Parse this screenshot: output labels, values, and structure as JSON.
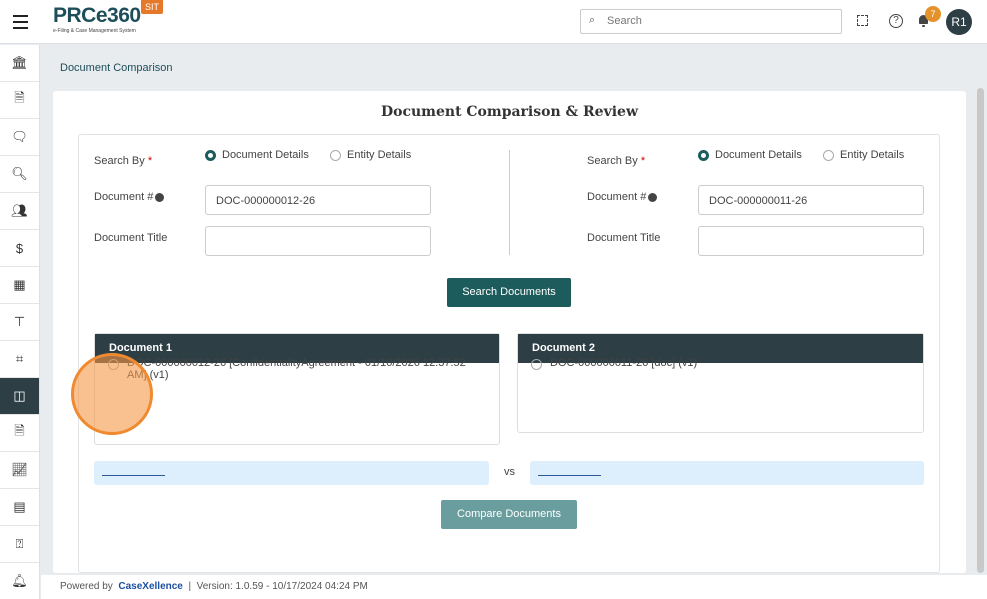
{
  "header": {
    "logo_text": "PRCe360",
    "logo_subtitle": "e-Filing & Case Management System",
    "env_badge": "SIT",
    "search_placeholder": "Search",
    "notification_count": "7",
    "avatar": "R1"
  },
  "sidebar": {
    "items": [
      "bank-icon",
      "document-icon",
      "chat-icon",
      "document-search-icon",
      "users-icon",
      "dollar-document-icon",
      "building-icon",
      "template-icon",
      "scan-icon",
      "compare-icon",
      "file-icon",
      "chart-icon",
      "calendar-icon",
      "help-icon",
      "bell-icon"
    ],
    "active_index": 9
  },
  "breadcrumb": "Document Comparison",
  "page": {
    "title": "Document Comparison & Review",
    "left": {
      "search_by_label": "Search By",
      "options": [
        "Document Details",
        "Entity Details"
      ],
      "selected": "Document Details",
      "doc_number_label": "Document #",
      "doc_number_value": "DOC-000000012-26",
      "doc_title_label": "Document Title",
      "doc_title_value": ""
    },
    "right": {
      "search_by_label": "Search By",
      "options": [
        "Document Details",
        "Entity Details"
      ],
      "selected": "Document Details",
      "doc_number_label": "Document #",
      "doc_number_value": "DOC-000000011-26",
      "doc_title_label": "Document Title",
      "doc_title_value": ""
    },
    "search_button": "Search Documents",
    "doc1": {
      "header": "Document 1",
      "result": "DOC-000000012-26 [ConfidentialityAgreement - 01/10/2026 12:37:52 AM] (v1)"
    },
    "doc2": {
      "header": "Document 2",
      "result": "DOC-000000011-26 [doc] (v1)"
    },
    "vs": "vs",
    "compare_button": "Compare Documents"
  },
  "footer": {
    "powered_by": "Powered by",
    "brand": "CaseXellence",
    "separator": "|",
    "version": "Version: 1.0.59 - 10/17/2024 04:24 PM"
  },
  "colors": {
    "primary": "#1d5c5c",
    "dark": "#2d3e45",
    "accent": "#e6782a"
  }
}
